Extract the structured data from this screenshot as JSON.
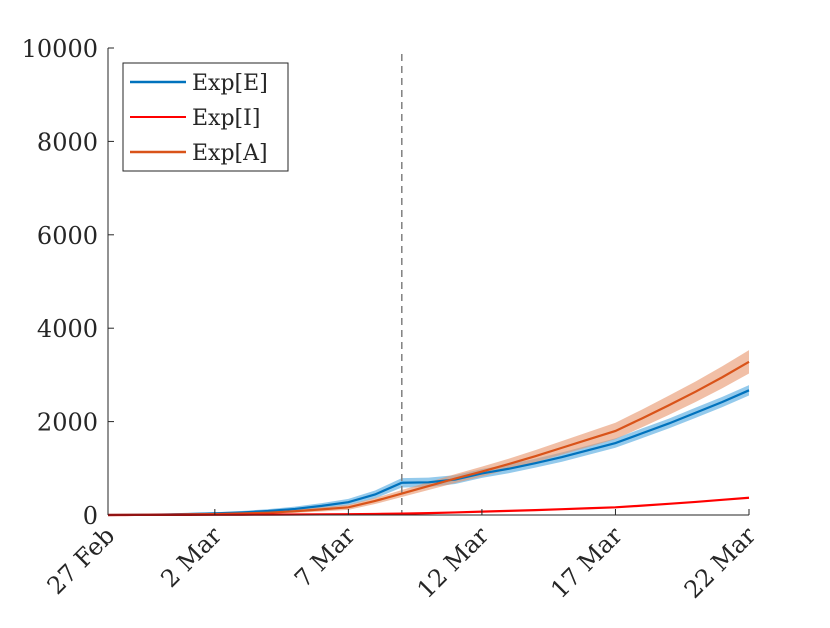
{
  "chart_data": {
    "type": "line",
    "x": [
      "27 Feb",
      "28 Feb",
      "29 Feb",
      "1 Mar",
      "2 Mar",
      "3 Mar",
      "4 Mar",
      "5 Mar",
      "6 Mar",
      "7 Mar",
      "8 Mar",
      "9 Mar",
      "10 Mar",
      "11 Mar",
      "12 Mar",
      "13 Mar",
      "14 Mar",
      "15 Mar",
      "16 Mar",
      "17 Mar",
      "18 Mar",
      "19 Mar",
      "20 Mar",
      "21 Mar",
      "22 Mar"
    ],
    "xticks": [
      "27 Feb",
      "2 Mar",
      "7 Mar",
      "12 Mar",
      "17 Mar",
      "22 Mar"
    ],
    "xtick_index": [
      0,
      4,
      9,
      14,
      19,
      24
    ],
    "ylim": [
      0,
      10000
    ],
    "yticks": [
      "0",
      "2000",
      "4000",
      "6000",
      "8000",
      "10000"
    ],
    "ytick_values": [
      0,
      2000,
      4000,
      6000,
      8000,
      10000
    ],
    "vline_index": 11,
    "grid": false,
    "legend_position": "top-left",
    "series": [
      {
        "name": "Exp[E]",
        "color": "#0072BD",
        "band_color": "#4DA6E0",
        "values": [
          0,
          5,
          12,
          22,
          35,
          55,
          85,
          130,
          195,
          275,
          440,
          690,
          700,
          760,
          890,
          990,
          1110,
          1240,
          1390,
          1540,
          1750,
          1960,
          2190,
          2420,
          2670
        ],
        "band": [
          10,
          12,
          15,
          20,
          25,
          30,
          40,
          50,
          60,
          70,
          85,
          100,
          100,
          95,
          95,
          95,
          95,
          100,
          100,
          100,
          105,
          105,
          110,
          110,
          110
        ]
      },
      {
        "name": "Exp[I]",
        "color": "#FF0000",
        "band_color": "#FF0000",
        "values": [
          0,
          1,
          2,
          3,
          4,
          6,
          8,
          10,
          13,
          17,
          23,
          30,
          40,
          55,
          72,
          88,
          105,
          125,
          145,
          165,
          200,
          240,
          280,
          325,
          370
        ],
        "band": [
          0,
          0,
          0,
          0,
          0,
          0,
          0,
          1,
          1,
          1,
          2,
          2,
          3,
          3,
          4,
          5,
          6,
          7,
          8,
          9,
          10,
          11,
          12,
          13,
          14
        ]
      },
      {
        "name": "Exp[A]",
        "color": "#D95319",
        "band_color": "#E8946A",
        "values": [
          0,
          3,
          7,
          13,
          20,
          32,
          50,
          80,
          120,
          165,
          300,
          460,
          620,
          780,
          930,
          1090,
          1260,
          1440,
          1620,
          1800,
          2070,
          2350,
          2640,
          2950,
          3280
        ],
        "band": [
          8,
          10,
          12,
          15,
          18,
          22,
          28,
          35,
          45,
          55,
          65,
          75,
          85,
          95,
          105,
          115,
          130,
          145,
          160,
          175,
          190,
          205,
          220,
          235,
          250
        ]
      }
    ]
  }
}
